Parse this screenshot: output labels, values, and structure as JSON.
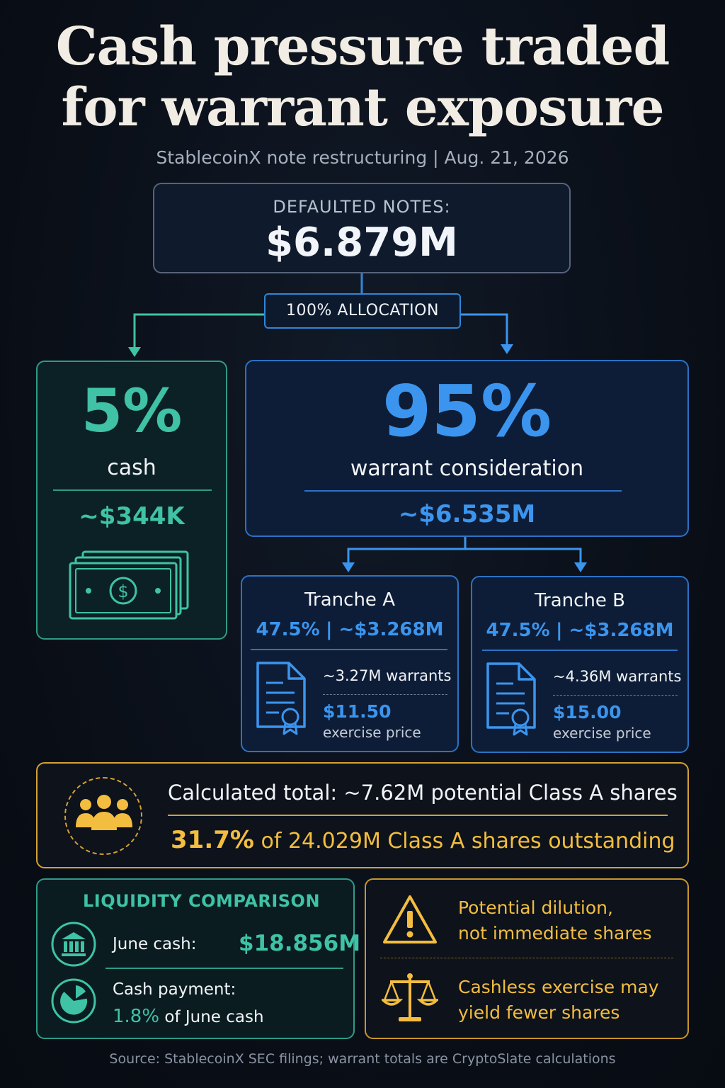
{
  "header": {
    "title_line1": "Cash pressure traded",
    "title_line2": "for warrant exposure",
    "subtitle": "StablecoinX note restructuring | Aug. 21, 2026"
  },
  "notes": {
    "label": "DEFAULTED NOTES:",
    "value": "$6.879M"
  },
  "allocation_label": "100% ALLOCATION",
  "cash": {
    "percent": "5%",
    "label": "cash",
    "amount": "~$344K",
    "icon": "cash-bill-icon"
  },
  "warrant": {
    "percent": "95%",
    "label": "warrant consideration",
    "amount": "~$6.535M"
  },
  "tranches": [
    {
      "name": "Tranche A",
      "split_pct": "47.5%",
      "split_amount": "| ~$3.268M",
      "warrants": "~3.27M warrants",
      "price": "$11.50",
      "price_label": "exercise price",
      "icon": "certificate-document-icon"
    },
    {
      "name": "Tranche B",
      "split_pct": "47.5%",
      "split_amount": "| ~$3.268M",
      "warrants": "~4.36M warrants",
      "price": "$15.00",
      "price_label": "exercise price",
      "icon": "certificate-document-icon"
    }
  ],
  "total": {
    "line1": "Calculated total: ~7.62M potential Class A shares",
    "pct": "31.7%",
    "line2_rest": "of 24.029M Class A shares outstanding",
    "icon": "people-group-icon"
  },
  "liquidity": {
    "heading": "LIQUIDITY COMPARISON",
    "june_label": "June cash:",
    "june_value": "$18.856M",
    "payment_label": "Cash payment:",
    "payment_pct": "1.8%",
    "payment_rest": "of June cash"
  },
  "notes_panel": {
    "note1_line1": "Potential dilution,",
    "note1_line2": "not immediate shares",
    "note2_line1": "Cashless exercise may",
    "note2_line2": "yield fewer shares"
  },
  "source": "Source: StablecoinX SEC filings; warrant totals are CryptoSlate calculations",
  "colors": {
    "teal": "#3fc2a5",
    "blue": "#3b95ee",
    "gold": "#f3bd3f",
    "background": "#0b1019"
  }
}
